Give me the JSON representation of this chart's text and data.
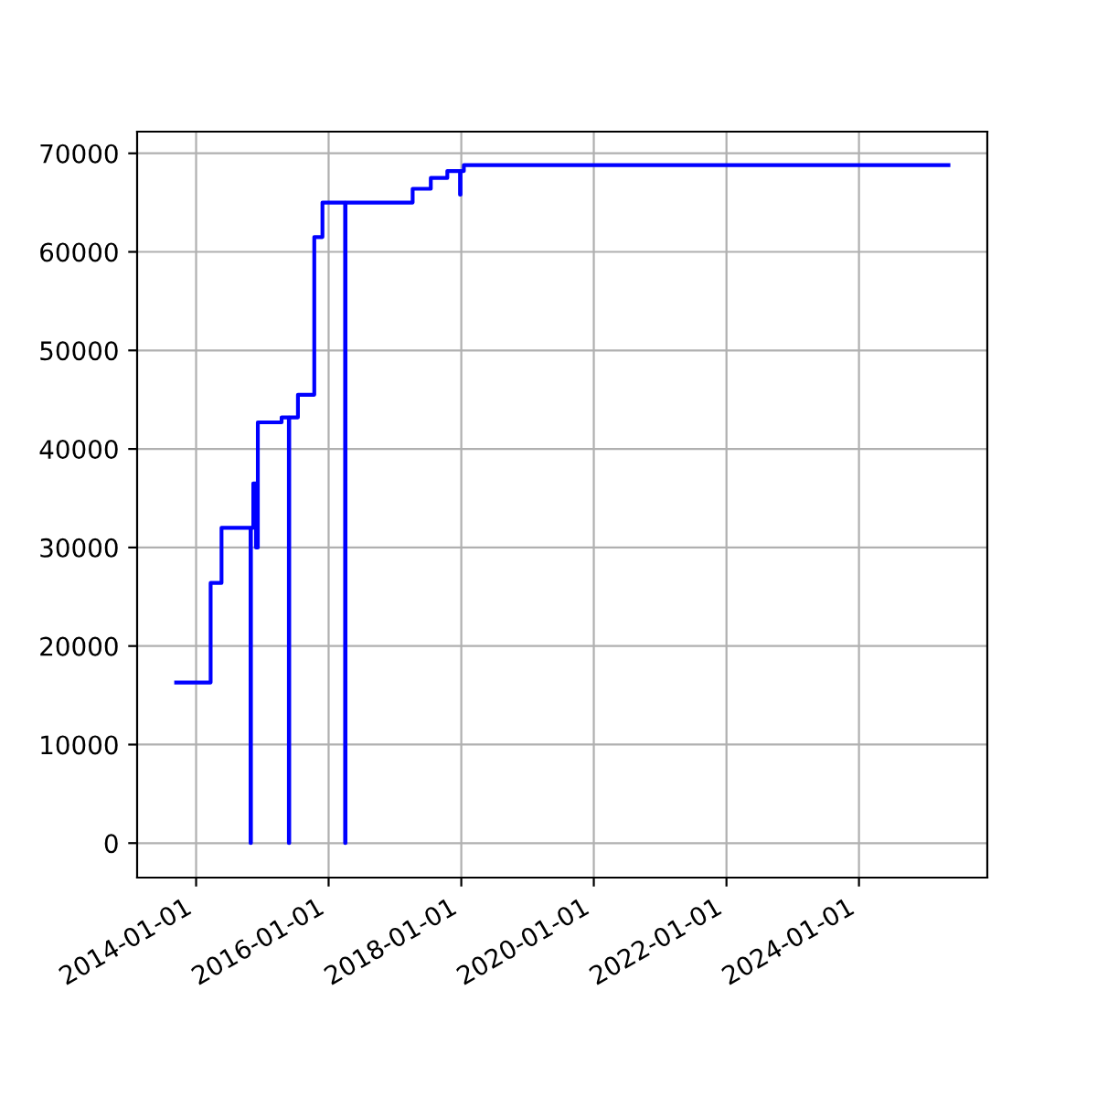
{
  "chart_data": {
    "type": "step",
    "x": [
      "2013-09-13",
      "2014-03-22",
      "2014-05-21",
      "2014-10-28",
      "2014-10-30",
      "2014-11-12",
      "2014-11-27",
      "2014-12-07",
      "2015-04-17",
      "2015-05-27",
      "2015-05-29",
      "2015-07-16",
      "2015-10-14",
      "2015-11-28",
      "2016-04-01",
      "2016-04-03",
      "2017-04-08",
      "2017-07-17",
      "2017-10-16",
      "2017-12-25",
      "2017-12-28",
      "2018-01-15",
      "2025-05-08"
    ],
    "series": [
      {
        "color": "#0000ff",
        "values": [
          16300,
          26400,
          32000,
          0,
          32000,
          36500,
          30000,
          42700,
          43200,
          0,
          43200,
          45500,
          61500,
          65000,
          0,
          65000,
          66400,
          67500,
          68200,
          65800,
          68200,
          68800,
          68800
        ]
      }
    ],
    "xlim": [
      "2013-02-10",
      "2025-12-08"
    ],
    "ylim": [
      -3500,
      72200
    ],
    "xticks": [
      "2014-01-01",
      "2016-01-01",
      "2018-01-01",
      "2020-01-01",
      "2022-01-01",
      "2024-01-01"
    ],
    "yticks": [
      0,
      10000,
      20000,
      30000,
      40000,
      50000,
      60000,
      70000
    ],
    "grid": true
  }
}
